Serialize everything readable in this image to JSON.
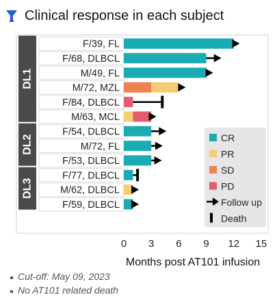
{
  "header": {
    "title": "Clinical response in each subject",
    "icon": "lab-flask-icon"
  },
  "footnotes": [
    "Cut-off: May 09, 2023",
    "No AT101 related death"
  ],
  "colors": {
    "CR": "#1aabb3",
    "PR": "#f5cd72",
    "SD": "#ee8350",
    "PD": "#e45c6f",
    "group_bar": "#4a4a4a",
    "legend_bg": "#e6e6e6",
    "icon": "#1f5fd6"
  },
  "chart_data": {
    "type": "bar",
    "orientation": "horizontal",
    "stacked": true,
    "xlabel": "Months post AT101 infusion",
    "xlim": [
      0,
      15
    ],
    "xticks": [
      0,
      3,
      6,
      9,
      12,
      15
    ],
    "grid": false,
    "legend_position": "right",
    "groups": [
      {
        "label": "DL1",
        "rows": [
          0,
          5
        ]
      },
      {
        "label": "DL2",
        "rows": [
          6,
          8
        ]
      },
      {
        "label": "DL3",
        "rows": [
          9,
          11
        ]
      }
    ],
    "subjects": [
      {
        "label": "F/39, FL",
        "segments": [
          {
            "status": "CR",
            "from": 0,
            "to": 12
          }
        ],
        "end": 12.5,
        "marker": "follow-up"
      },
      {
        "label": "F/68, DLBCL",
        "segments": [
          {
            "status": "CR",
            "from": 0,
            "to": 9
          }
        ],
        "end": 10.5,
        "marker": "follow-up"
      },
      {
        "label": "M/49, FL",
        "segments": [
          {
            "status": "CR",
            "from": 0,
            "to": 9
          }
        ],
        "end": 9.6,
        "marker": "follow-up"
      },
      {
        "label": "M/72, MZL",
        "segments": [
          {
            "status": "SD",
            "from": 0,
            "to": 3
          },
          {
            "status": "PR",
            "from": 3,
            "to": 6
          }
        ],
        "end": 6.6,
        "marker": "follow-up"
      },
      {
        "label": "F/84, DLBCL",
        "segments": [
          {
            "status": "PD",
            "from": 0,
            "to": 1
          }
        ],
        "end": 4.2,
        "marker": "death"
      },
      {
        "label": "M/63, MCL",
        "segments": [
          {
            "status": "PR",
            "from": 0,
            "to": 1
          },
          {
            "status": "PD",
            "from": 1,
            "to": 3
          }
        ],
        "end": 3.4,
        "marker": "follow-up"
      },
      {
        "label": "F/54, DLBCL",
        "segments": [
          {
            "status": "CR",
            "from": 0,
            "to": 3
          }
        ],
        "end": 4.5,
        "marker": "follow-up"
      },
      {
        "label": "M/72, FL",
        "segments": [
          {
            "status": "CR",
            "from": 0,
            "to": 3
          }
        ],
        "end": 4.1,
        "marker": "follow-up"
      },
      {
        "label": "F/53, DLBCL",
        "segments": [
          {
            "status": "CR",
            "from": 0,
            "to": 3
          }
        ],
        "end": 4.0,
        "marker": "follow-up"
      },
      {
        "label": "F/77, DLBCL",
        "segments": [
          {
            "status": "CR",
            "from": 0,
            "to": 1
          }
        ],
        "end": 1.5,
        "marker": "death"
      },
      {
        "label": "M/62, DLBCL",
        "segments": [
          {
            "status": "PR",
            "from": 0,
            "to": 1
          }
        ],
        "end": 1.5,
        "marker": "follow-up"
      },
      {
        "label": "F/59, DLBCL",
        "segments": [
          {
            "status": "CR",
            "from": 0,
            "to": 1
          }
        ],
        "end": 1.5,
        "marker": "follow-up"
      }
    ],
    "legend": [
      {
        "label": "CR",
        "kind": "swatch",
        "status": "CR"
      },
      {
        "label": "PR",
        "kind": "swatch",
        "status": "PR"
      },
      {
        "label": "SD",
        "kind": "swatch",
        "status": "SD"
      },
      {
        "label": "PD",
        "kind": "swatch",
        "status": "PD"
      },
      {
        "label": "Follow up",
        "kind": "arrow"
      },
      {
        "label": "Death",
        "kind": "death"
      }
    ]
  }
}
